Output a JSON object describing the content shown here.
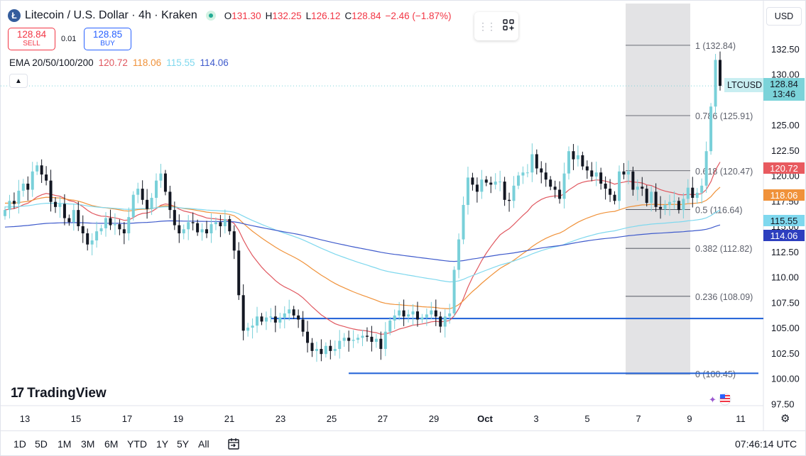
{
  "header": {
    "title": "Litecoin / U.S. Dollar · 4h · Kraken",
    "ohlc": [
      {
        "k": "O",
        "v": "131.30"
      },
      {
        "k": "H",
        "v": "132.25"
      },
      {
        "k": "L",
        "v": "126.12"
      },
      {
        "k": "C",
        "v": "128.84"
      },
      {
        "k": "",
        "v": "−2.46 (−1.87%)"
      }
    ],
    "coin_icon_letter": "Ł"
  },
  "trade": {
    "sell_price": "128.84",
    "sell_label": "SELL",
    "buy_price": "128.85",
    "buy_label": "BUY",
    "spread": "0.01"
  },
  "ema": {
    "label": "EMA 20/50/100/200",
    "values": [
      {
        "v": "120.72",
        "color": "#e0575f"
      },
      {
        "v": "118.06",
        "color": "#f0923a"
      },
      {
        "v": "115.55",
        "color": "#7fd8ee"
      },
      {
        "v": "114.06",
        "color": "#3f5bcc"
      }
    ]
  },
  "currency": "USD",
  "chart_data": {
    "type": "candlestick",
    "symbol": "LTCUSD",
    "last_price": "128.84",
    "countdown": "13:46",
    "y_ticks": [
      "132.50",
      "130.00",
      "125.00",
      "122.50",
      "120.00",
      "117.50",
      "115.00",
      "112.50",
      "110.00",
      "107.50",
      "105.00",
      "102.50",
      "100.00",
      "97.50"
    ],
    "x_ticks": [
      "13",
      "15",
      "17",
      "19",
      "21",
      "23",
      "25",
      "27",
      "29",
      "Oct",
      "3",
      "5",
      "7",
      "9",
      "11"
    ],
    "fib_levels": [
      {
        "label": "1 (132.84)",
        "value": 132.84
      },
      {
        "label": "0.786 (125.91)",
        "value": 125.91
      },
      {
        "label": "0.618 (120.47)",
        "value": 120.47
      },
      {
        "label": "0.5 (116.64)",
        "value": 116.64
      },
      {
        "label": "0.382 (112.82)",
        "value": 112.82
      },
      {
        "label": "0.236 (108.09)",
        "value": 108.09
      },
      {
        "label": "0 (100.45)",
        "value": 100.45
      }
    ],
    "support_lines": [
      105.9,
      100.5
    ],
    "ema_tags": [
      {
        "v": "120.72",
        "value": 120.72,
        "color": "#e85a5f"
      },
      {
        "v": "118.06",
        "value": 118.06,
        "color": "#f0923a"
      },
      {
        "v": "115.55",
        "value": 115.55,
        "color": "#7fd8ee"
      },
      {
        "v": "114.06",
        "value": 114.06,
        "color": "#2d3fbf"
      }
    ],
    "closes": [
      116.6,
      117.5,
      117.2,
      118.5,
      119.2,
      118.6,
      120.4,
      121.0,
      120.1,
      119.5,
      117.4,
      116.9,
      117.2,
      115.8,
      115.4,
      116.6,
      115.0,
      114.3,
      113.2,
      113.6,
      114.5,
      114.8,
      115.8,
      115.1,
      115.2,
      114.7,
      114.3,
      115.9,
      118.1,
      118.7,
      117.6,
      116.7,
      117.8,
      119.5,
      120.2,
      118.4,
      116.6,
      115.1,
      114.3,
      114.7,
      115.4,
      115.3,
      114.4,
      114.7,
      114.3,
      115.2,
      115.4,
      115.0,
      115.7,
      114.5,
      112.6,
      108.2,
      104.7,
      105.0,
      105.2,
      106.1,
      105.6,
      106.0,
      106.1,
      105.5,
      106.0,
      106.4,
      106.8,
      106.2,
      105.8,
      104.6,
      103.5,
      102.7,
      102.9,
      102.4,
      103.2,
      102.7,
      102.9,
      103.7,
      104.0,
      103.7,
      103.8,
      104.0,
      104.2,
      104.1,
      103.6,
      103.9,
      102.9,
      104.6,
      105.7,
      106.2,
      106.7,
      106.1,
      106.3,
      106.6,
      105.8,
      106.0,
      106.3,
      106.7,
      106.1,
      105.1,
      106.1,
      106.4,
      110.7,
      113.7,
      117.1,
      119.8,
      119.1,
      118.4,
      119.6,
      119.3,
      119.1,
      119.4,
      119.4,
      117.6,
      117.5,
      119.0,
      120.0,
      120.3,
      120.3,
      122.1,
      120.7,
      120.3,
      119.6,
      118.9,
      118.6,
      117.7,
      120.2,
      122.4,
      121.6,
      122.0,
      120.9,
      120.5,
      119.9,
      120.3,
      119.2,
      118.7,
      118.1,
      117.5,
      120.4,
      120.1,
      120.4,
      118.6,
      118.9,
      118.7,
      117.3,
      118.4,
      116.9,
      116.7,
      117.1,
      117.4,
      117.5,
      116.6,
      117.7,
      118.8,
      117.8,
      118.3,
      119.0,
      122.4,
      126.8,
      131.4,
      128.84
    ]
  },
  "brand": "TradingView",
  "bottom": {
    "ranges": [
      "1D",
      "5D",
      "1M",
      "3M",
      "6M",
      "YTD",
      "1Y",
      "5Y",
      "All"
    ],
    "clock": "07:46:14 UTC"
  }
}
